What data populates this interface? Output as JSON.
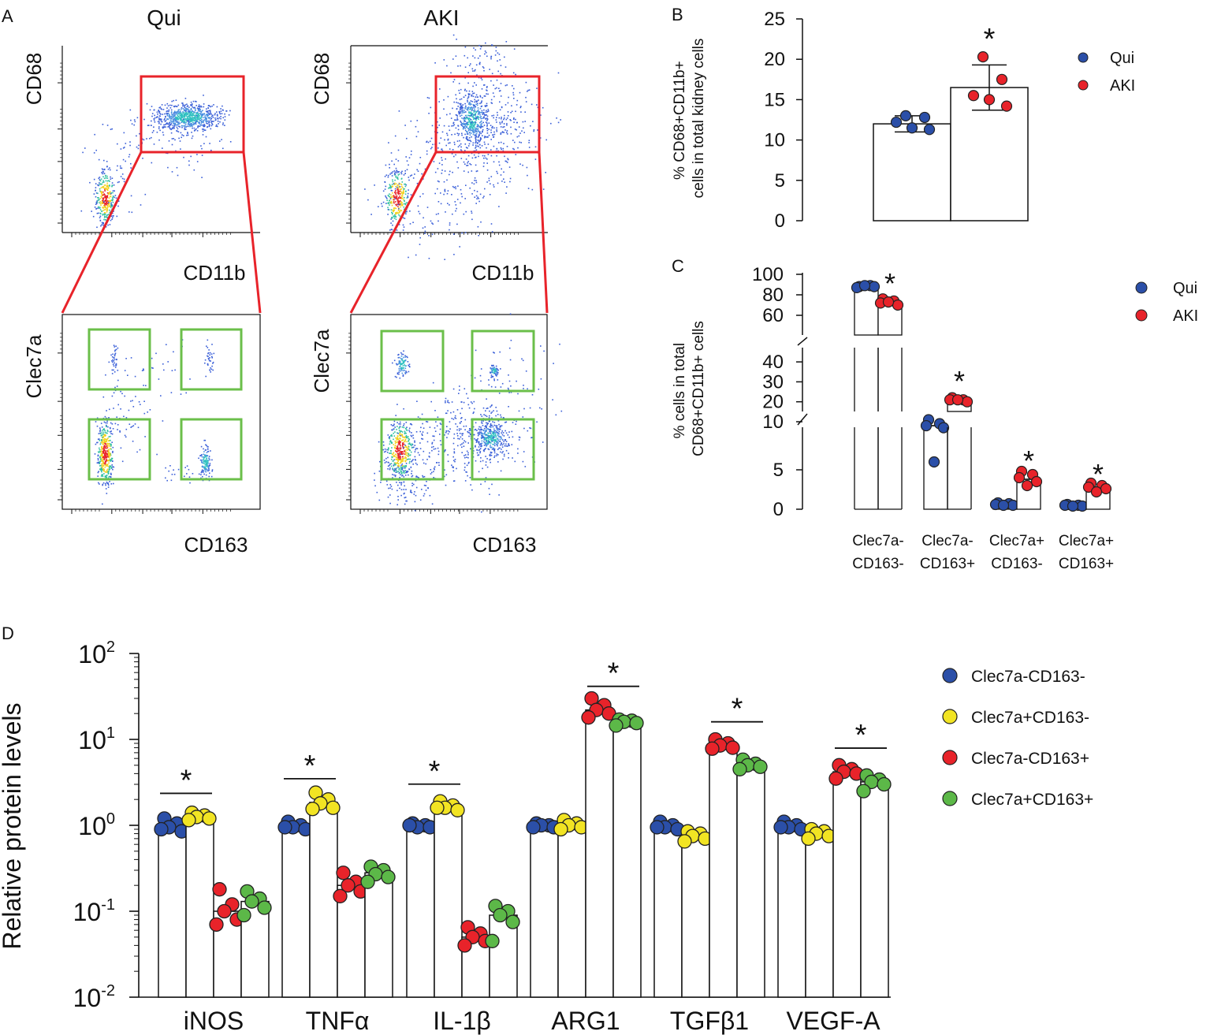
{
  "colors": {
    "qui": "#2b4fa8",
    "aki": "#e8232a",
    "gate_red": "#e8232a",
    "gate_green": "#6bbf4a",
    "yellow": "#f2e423",
    "green": "#5cb848",
    "axis": "#111111"
  },
  "panel_letters": {
    "a": "A",
    "b": "B",
    "c": "C",
    "d": "D"
  },
  "panel_a": {
    "top_left": {
      "title": "Qui",
      "ylabel": "CD68",
      "xlabel": "CD11b"
    },
    "top_right": {
      "title": "AKI",
      "ylabel": "CD68",
      "xlabel": "CD11b"
    },
    "bottom_left": {
      "ylabel": "Clec7a",
      "xlabel": "CD163"
    },
    "bottom_right": {
      "ylabel": "Clec7a",
      "xlabel": "CD163"
    }
  },
  "chart_data": [
    {
      "id": "B",
      "type": "bar",
      "ylabel_line1": "%  CD68+CD11b+",
      "ylabel_line2": "cells in total kidney cells",
      "ylim": [
        0,
        25
      ],
      "yticks": [
        0,
        5,
        10,
        15,
        20,
        25
      ],
      "series": [
        {
          "name": "Qui",
          "mean": 12,
          "sd": 1,
          "points": [
            13,
            12.8,
            12.2,
            11.5,
            11.3
          ]
        },
        {
          "name": "AKI",
          "mean": 16.5,
          "sd": 2.8,
          "points": [
            20.3,
            17.5,
            15.5,
            15,
            14.2
          ]
        }
      ],
      "significance": "*",
      "legend": [
        "Qui",
        "AKI"
      ]
    },
    {
      "id": "C",
      "type": "bar",
      "ylabel_line1": "%  cells in total",
      "ylabel_line2": "CD68+CD11b+ cells",
      "axis_break": true,
      "yticks_bottom": [
        0,
        5
      ],
      "yticks_middle": [
        10,
        20,
        30,
        40
      ],
      "yticks_top": [
        60,
        80,
        100
      ],
      "categories": [
        {
          "line1": "Clec7a-",
          "line2": "CD163-"
        },
        {
          "line1": "Clec7a-",
          "line2": "CD163+"
        },
        {
          "line1": "Clec7a+",
          "line2": "CD163-"
        },
        {
          "line1": "Clec7a+",
          "line2": "CD163+"
        }
      ],
      "series": [
        {
          "name": "Qui",
          "means": [
            88,
            8,
            0.6,
            0.5
          ],
          "points": [
            [
              88,
              89,
              87,
              88,
              89
            ],
            [
              11,
              9,
              8,
              7,
              6
            ],
            [
              0.8,
              0.7,
              0.6,
              0.5,
              0.5
            ],
            [
              0.6,
              0.5,
              0.5,
              0.4,
              0.4
            ]
          ]
        },
        {
          "name": "AKI",
          "means": [
            73,
            21,
            3.8,
            2.6
          ],
          "points": [
            [
              76,
              74,
              72,
              70,
              73
            ],
            [
              22,
              21,
              21,
              20,
              21
            ],
            [
              4.8,
              4.4,
              4.0,
              3.5,
              3.0
            ],
            [
              3.3,
              3.0,
              2.8,
              2.6,
              2.2
            ]
          ]
        }
      ],
      "significance": [
        "*",
        "*",
        "*",
        "*"
      ],
      "legend": [
        "Qui",
        "AKI"
      ]
    },
    {
      "id": "D",
      "type": "bar",
      "scale": "log",
      "ylabel": "Relative protein levels",
      "ylim": [
        0.01,
        100
      ],
      "yticks": [
        {
          "base": "10",
          "exp": "-2"
        },
        {
          "base": "10",
          "exp": "-1"
        },
        {
          "base": "10",
          "exp": "0"
        },
        {
          "base": "10",
          "exp": "1"
        },
        {
          "base": "10",
          "exp": "2"
        }
      ],
      "categories": [
        "iNOS",
        "TNFα",
        "IL-1β",
        "ARG1",
        "TGFβ1",
        "VEGF-A"
      ],
      "series": [
        {
          "name": "Clec7a-CD163-",
          "values": [
            1.0,
            1.0,
            1.0,
            1.0,
            1.0,
            1.0
          ],
          "points": [
            [
              1.2,
              1.05,
              0.95,
              0.85,
              0.9
            ],
            [
              1.1,
              1.0,
              0.95,
              0.9,
              0.95
            ],
            [
              1.05,
              1.0,
              0.95,
              0.95,
              1.0
            ],
            [
              1.05,
              1.0,
              1.0,
              0.95,
              0.95
            ],
            [
              1.1,
              1.0,
              0.95,
              0.9,
              0.95
            ],
            [
              1.1,
              1.0,
              0.95,
              0.9,
              0.95
            ]
          ]
        },
        {
          "name": "Clec7a+CD163-",
          "values": [
            1.25,
            1.85,
            1.6,
            1.0,
            0.75,
            0.8
          ],
          "points": [
            [
              1.4,
              1.3,
              1.25,
              1.2,
              1.15
            ],
            [
              2.4,
              2.0,
              1.8,
              1.6,
              1.55
            ],
            [
              1.9,
              1.7,
              1.6,
              1.5,
              1.6
            ],
            [
              1.15,
              1.05,
              1.0,
              0.95,
              0.9
            ],
            [
              0.85,
              0.8,
              0.75,
              0.7,
              0.65
            ],
            [
              0.9,
              0.85,
              0.8,
              0.75,
              0.7
            ]
          ]
        },
        {
          "name": "Clec7a-CD163+",
          "values": [
            0.1,
            0.2,
            0.05,
            22,
            8.5,
            4.2
          ],
          "points": [
            [
              0.18,
              0.12,
              0.1,
              0.08,
              0.07
            ],
            [
              0.28,
              0.22,
              0.2,
              0.17,
              0.15
            ],
            [
              0.065,
              0.055,
              0.05,
              0.045,
              0.04
            ],
            [
              30,
              25,
              22,
              20,
              18
            ],
            [
              10,
              9,
              8.5,
              8,
              7.8
            ],
            [
              5,
              4.5,
              4.2,
              4.0,
              3.5
            ]
          ]
        },
        {
          "name": "Clec7a+CD163+",
          "values": [
            0.13,
            0.28,
            0.09,
            16,
            5,
            3.2
          ],
          "points": [
            [
              0.17,
              0.14,
              0.13,
              0.11,
              0.09
            ],
            [
              0.33,
              0.3,
              0.27,
              0.25,
              0.22
            ],
            [
              0.115,
              0.1,
              0.09,
              0.075,
              0.045
            ],
            [
              17,
              16.5,
              16,
              15.5,
              14.5
            ],
            [
              5.8,
              5.2,
              5.0,
              4.8,
              4.5
            ],
            [
              3.8,
              3.4,
              3.2,
              3.0,
              2.5
            ]
          ]
        }
      ],
      "significance": [
        "*",
        "*",
        "*",
        "*",
        "*",
        "*"
      ],
      "legend": [
        "Clec7a-CD163-",
        "Clec7a+CD163-",
        "Clec7a-CD163+",
        "Clec7a+CD163+"
      ]
    }
  ]
}
